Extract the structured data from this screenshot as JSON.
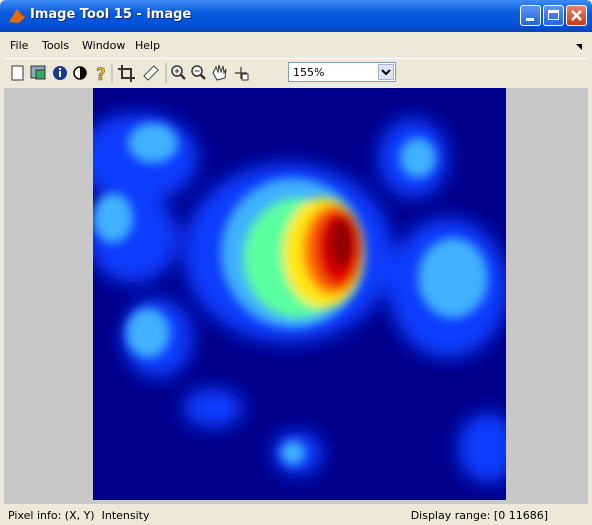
{
  "window": {
    "title": "Image Tool 15 - image"
  },
  "menu": [
    "File",
    "Tools",
    "Window",
    "Help"
  ],
  "toolbar": {
    "zoom": "155%"
  },
  "status": {
    "left": "Pixel info: (X, Y)  Intensity",
    "right": "Display range: [0 11686]"
  }
}
